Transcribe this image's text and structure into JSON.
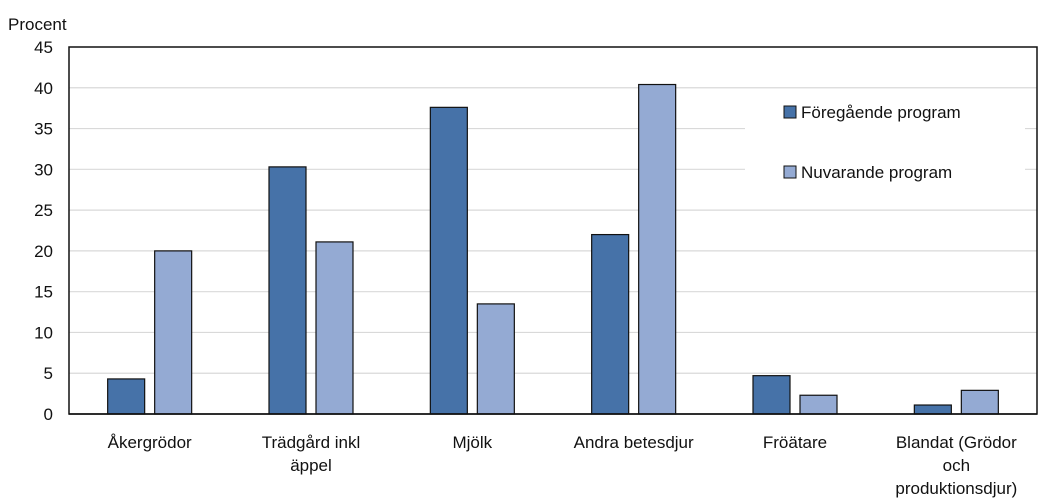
{
  "chart_data": {
    "type": "bar",
    "title": "",
    "xlabel": "",
    "ylabel": "Procent",
    "ylim": [
      0,
      45
    ],
    "yticks": [
      0,
      5,
      10,
      15,
      20,
      25,
      30,
      35,
      40,
      45
    ],
    "grid": true,
    "legend_position": "right",
    "categories": [
      [
        "Åkergrödor"
      ],
      [
        "Trädgård inkl",
        "äppel"
      ],
      [
        "Mjölk"
      ],
      [
        "Andra betesdjur"
      ],
      [
        "Fröätare"
      ],
      [
        "Blandat (Grödor",
        "och",
        "produktionsdjur)"
      ]
    ],
    "series": [
      {
        "name": "Föregående program",
        "color": "#4672a8",
        "values": [
          4.3,
          30.3,
          37.6,
          22.0,
          4.7,
          1.1
        ]
      },
      {
        "name": "Nuvarande program",
        "color": "#94aad3",
        "values": [
          20.0,
          21.1,
          13.5,
          40.4,
          2.3,
          2.9
        ]
      }
    ]
  }
}
